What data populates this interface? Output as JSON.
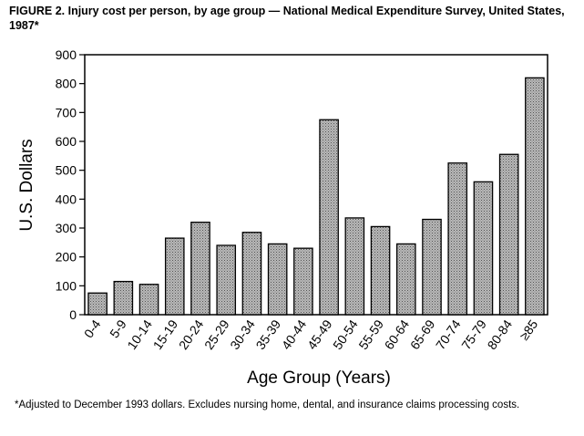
{
  "title": "FIGURE 2. Injury cost per person, by age group — National Medical Expenditure Survey, United States, 1987*",
  "footnote": "*Adjusted to December 1993 dollars. Excludes nursing home, dental, and insurance claims processing costs.",
  "chart_data": {
    "type": "bar",
    "categories": [
      "0-4",
      "5-9",
      "10-14",
      "15-19",
      "20-24",
      "25-29",
      "30-34",
      "35-39",
      "40-44",
      "45-49",
      "50-54",
      "55-59",
      "60-64",
      "65-69",
      "70-74",
      "75-79",
      "80-84",
      "≥85"
    ],
    "values": [
      75,
      115,
      105,
      265,
      320,
      240,
      285,
      245,
      230,
      675,
      335,
      305,
      245,
      330,
      525,
      460,
      555,
      820
    ],
    "title": "Injury cost per person, by age group",
    "xlabel": "Age Group (Years)",
    "ylabel": "U.S. Dollars",
    "ylim": [
      0,
      900
    ],
    "yticks": [
      0,
      100,
      200,
      300,
      400,
      500,
      600,
      700,
      800,
      900
    ],
    "bar_color": "#b8b8b8",
    "grid": false
  }
}
